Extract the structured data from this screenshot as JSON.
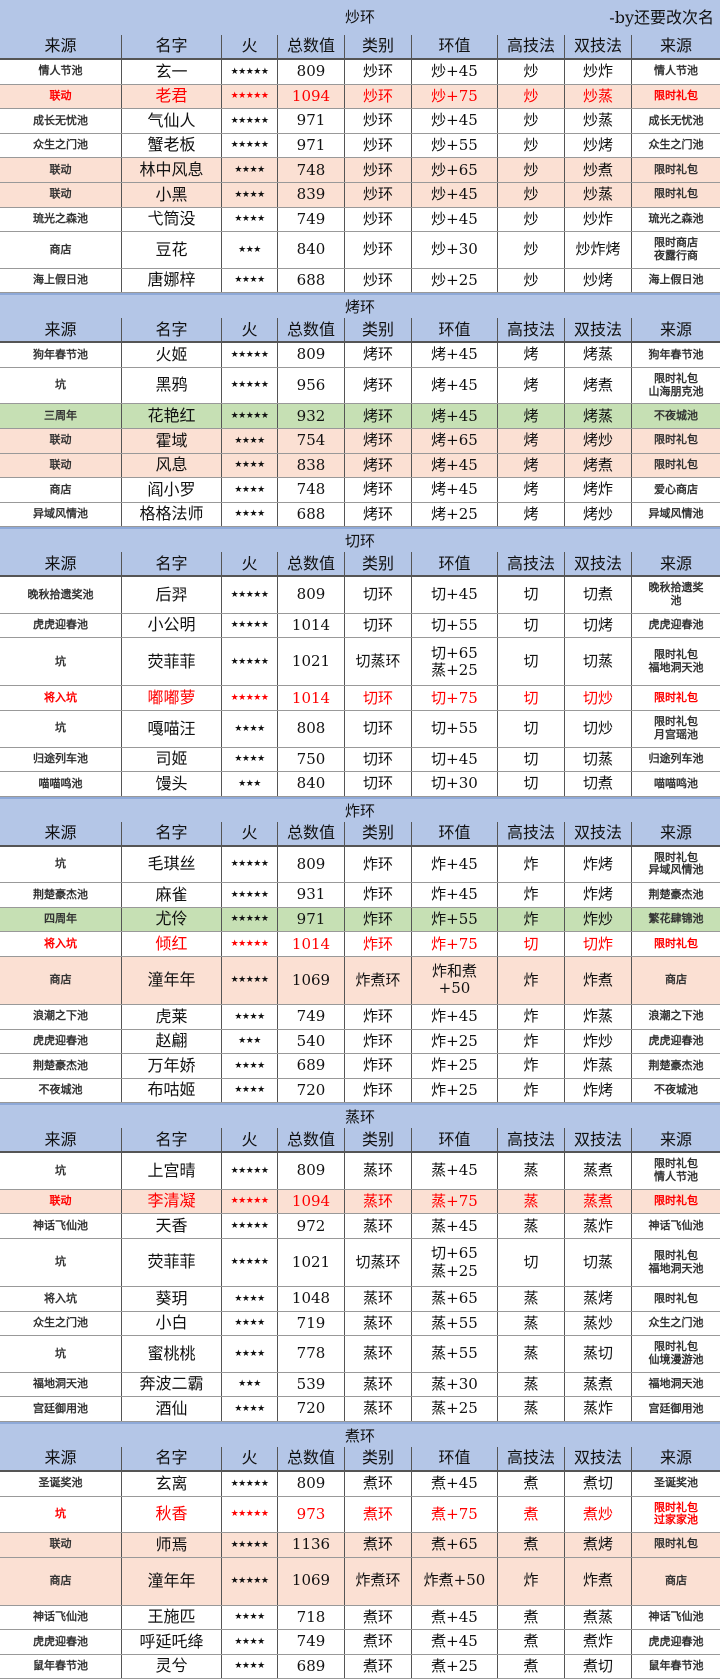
{
  "credit": "-by还要改次名",
  "colors": {
    "header": "#b4c6e7",
    "pink": "#fbe0d3",
    "green": "#c6e0b4",
    "red_text": "#ff0000"
  },
  "columns": [
    "来源",
    "名字",
    "火",
    "总数值",
    "类别",
    "环值",
    "高技法",
    "双技法",
    "来源"
  ],
  "sections": [
    {
      "title": "炒环",
      "rows": [
        {
          "cells": [
            "情人节池",
            "玄一",
            "★★★★★",
            "809",
            "炒环",
            "炒+45",
            "炒",
            "炒炸",
            "情人节池"
          ]
        },
        {
          "highlight": "pink-red",
          "cells": [
            "联动",
            "老君",
            "★★★★★",
            "1094",
            "炒环",
            "炒+75",
            "炒",
            "炒蒸",
            "限时礼包"
          ]
        },
        {
          "cells": [
            "成长无忧池",
            "气仙人",
            "★★★★★",
            "971",
            "炒环",
            "炒+45",
            "炒",
            "炒蒸",
            "成长无忧池"
          ]
        },
        {
          "cells": [
            "众生之门池",
            "蟹老板",
            "★★★★★",
            "971",
            "炒环",
            "炒+55",
            "炒",
            "炒烤",
            "众生之门池"
          ]
        },
        {
          "highlight": "pink",
          "cells": [
            "联动",
            "林中风息",
            "★★★★",
            "748",
            "炒环",
            "炒+65",
            "炒",
            "炒煮",
            "限时礼包"
          ]
        },
        {
          "highlight": "pink",
          "cells": [
            "联动",
            "小黑",
            "★★★★",
            "839",
            "炒环",
            "炒+45",
            "炒",
            "炒蒸",
            "限时礼包"
          ]
        },
        {
          "cells": [
            "琉光之森池",
            "弋筒没",
            "★★★★",
            "749",
            "炒环",
            "炒+45",
            "炒",
            "炒炸",
            "琉光之森池"
          ]
        },
        {
          "cells": [
            "商店",
            "豆花",
            "★★★",
            "840",
            "炒环",
            "炒+30",
            "炒",
            "炒炸烤",
            "限时商店\n夜露行商"
          ]
        },
        {
          "cells": [
            "海上假日池",
            "唐娜梓",
            "★★★★",
            "688",
            "炒环",
            "炒+25",
            "炒",
            "炒烤",
            "海上假日池"
          ]
        }
      ]
    },
    {
      "title": "烤环",
      "rows": [
        {
          "cells": [
            "狗年春节池",
            "火姬",
            "★★★★★",
            "809",
            "烤环",
            "烤+45",
            "烤",
            "烤蒸",
            "狗年春节池"
          ]
        },
        {
          "cells": [
            "坑",
            "黑鸦",
            "★★★★★",
            "956",
            "烤环",
            "烤+45",
            "烤",
            "烤煮",
            "限时礼包\n山海朋克池"
          ]
        },
        {
          "highlight": "green",
          "cells": [
            "三周年",
            "花艳红",
            "★★★★★",
            "932",
            "烤环",
            "烤+45",
            "烤",
            "烤蒸",
            "不夜城池"
          ]
        },
        {
          "highlight": "pink",
          "cells": [
            "联动",
            "霍域",
            "★★★★",
            "754",
            "烤环",
            "烤+65",
            "烤",
            "烤炒",
            "限时礼包"
          ]
        },
        {
          "highlight": "pink",
          "cells": [
            "联动",
            "风息",
            "★★★★",
            "838",
            "烤环",
            "烤+45",
            "烤",
            "烤煮",
            "限时礼包"
          ]
        },
        {
          "cells": [
            "商店",
            "阎小罗",
            "★★★★",
            "748",
            "烤环",
            "烤+45",
            "烤",
            "烤炸",
            "爱心商店"
          ]
        },
        {
          "cells": [
            "异域风情池",
            "格格法师",
            "★★★★",
            "688",
            "烤环",
            "烤+25",
            "烤",
            "烤炒",
            "异域风情池"
          ]
        }
      ]
    },
    {
      "title": "切环",
      "rows": [
        {
          "cells": [
            "晚秋拾遗奖池",
            "后羿",
            "★★★★★",
            "809",
            "切环",
            "切+45",
            "切",
            "切煮",
            "晚秋拾遗奖\n池"
          ]
        },
        {
          "cells": [
            "虎虎迎春池",
            "小公明",
            "★★★★★",
            "1014",
            "切环",
            "切+55",
            "切",
            "切烤",
            "虎虎迎春池"
          ]
        },
        {
          "tall": true,
          "cells": [
            "坑",
            "荧菲菲",
            "★★★★★",
            "1021",
            "切蒸环",
            "切+65\n蒸+25",
            "切",
            "切蒸",
            "限时礼包\n福地洞天池"
          ]
        },
        {
          "highlight": "red",
          "cells": [
            "将入坑",
            "嘟嘟萝",
            "★★★★★",
            "1014",
            "切环",
            "切+75",
            "切",
            "切炒",
            "限时礼包"
          ]
        },
        {
          "cells": [
            "坑",
            "嘎喵汪",
            "★★★★",
            "808",
            "切环",
            "切+55",
            "切",
            "切炒",
            "限时礼包\n月宫瑶池"
          ]
        },
        {
          "cells": [
            "归途列车池",
            "司姬",
            "★★★★",
            "750",
            "切环",
            "切+45",
            "切",
            "切蒸",
            "归途列车池"
          ]
        },
        {
          "cells": [
            "喵喵鸣池",
            "馒头",
            "★★★",
            "840",
            "切环",
            "切+30",
            "切",
            "切煮",
            "喵喵鸣池"
          ]
        }
      ]
    },
    {
      "title": "炸环",
      "rows": [
        {
          "cells": [
            "坑",
            "毛琪丝",
            "★★★★★",
            "809",
            "炸环",
            "炸+45",
            "炸",
            "炸烤",
            "限时礼包\n异域风情池"
          ]
        },
        {
          "cells": [
            "荆楚豪杰池",
            "麻雀",
            "★★★★★",
            "931",
            "炸环",
            "炸+45",
            "炸",
            "炸烤",
            "荆楚豪杰池"
          ]
        },
        {
          "highlight": "green",
          "cells": [
            "四周年",
            "尤伶",
            "★★★★★",
            "971",
            "炸环",
            "炸+55",
            "炸",
            "炸炒",
            "繁花肆锦池"
          ]
        },
        {
          "highlight": "red",
          "cells": [
            "将入坑",
            "倾红",
            "★★★★★",
            "1014",
            "炸环",
            "炸+75",
            "切",
            "切炸",
            "限时礼包"
          ]
        },
        {
          "highlight": "pink",
          "tall": true,
          "cells": [
            "商店",
            "潼年年",
            "★★★★★",
            "1069",
            "炸煮环",
            "炸和煮\n+50",
            "炸",
            "炸煮",
            "商店"
          ]
        },
        {
          "cells": [
            "浪潮之下池",
            "虎莱",
            "★★★★",
            "749",
            "炸环",
            "炸+45",
            "炸",
            "炸蒸",
            "浪潮之下池"
          ]
        },
        {
          "cells": [
            "虎虎迎春池",
            "赵翩",
            "★★★",
            "540",
            "炸环",
            "炸+25",
            "炸",
            "炸炒",
            "虎虎迎春池"
          ]
        },
        {
          "cells": [
            "荆楚豪杰池",
            "万年娇",
            "★★★★",
            "689",
            "炸环",
            "炸+25",
            "炸",
            "炸蒸",
            "荆楚豪杰池"
          ]
        },
        {
          "cells": [
            "不夜城池",
            "布咕姬",
            "★★★★",
            "720",
            "炸环",
            "炸+25",
            "炸",
            "炸烤",
            "不夜城池"
          ]
        }
      ]
    },
    {
      "title": "蒸环",
      "rows": [
        {
          "cells": [
            "坑",
            "上宫晴",
            "★★★★★",
            "809",
            "蒸环",
            "蒸+45",
            "蒸",
            "蒸煮",
            "限时礼包\n情人节池"
          ]
        },
        {
          "highlight": "pink-red",
          "cells": [
            "联动",
            "李清凝",
            "★★★★★",
            "1094",
            "蒸环",
            "蒸+75",
            "蒸",
            "蒸煮",
            "限时礼包"
          ]
        },
        {
          "cells": [
            "神话飞仙池",
            "天香",
            "★★★★★",
            "972",
            "蒸环",
            "蒸+45",
            "蒸",
            "蒸炸",
            "神话飞仙池"
          ]
        },
        {
          "tall": true,
          "cells": [
            "坑",
            "荧菲菲",
            "★★★★★",
            "1021",
            "切蒸环",
            "切+65\n蒸+25",
            "切",
            "切蒸",
            "限时礼包\n福地洞天池"
          ]
        },
        {
          "cells": [
            "将入坑",
            "葵玥",
            "★★★★",
            "1048",
            "蒸环",
            "蒸+65",
            "蒸",
            "蒸烤",
            "限时礼包"
          ]
        },
        {
          "cells": [
            "众生之门池",
            "小白",
            "★★★★",
            "719",
            "蒸环",
            "蒸+55",
            "蒸",
            "蒸炒",
            "众生之门池"
          ]
        },
        {
          "cells": [
            "坑",
            "蜜桃桃",
            "★★★★",
            "778",
            "蒸环",
            "蒸+55",
            "蒸",
            "蒸切",
            "限时礼包\n仙境漫游池"
          ]
        },
        {
          "cells": [
            "福地洞天池",
            "奔波二霸",
            "★★★",
            "539",
            "蒸环",
            "蒸+30",
            "蒸",
            "蒸煮",
            "福地洞天池"
          ]
        },
        {
          "cells": [
            "宫廷御用池",
            "酒仙",
            "★★★★",
            "720",
            "蒸环",
            "蒸+25",
            "蒸",
            "蒸炸",
            "宫廷御用池"
          ]
        }
      ]
    },
    {
      "title": "煮环",
      "rows": [
        {
          "cells": [
            "圣诞奖池",
            "玄离",
            "★★★★★",
            "809",
            "煮环",
            "煮+45",
            "煮",
            "煮切",
            "圣诞奖池"
          ]
        },
        {
          "highlight": "red",
          "cells": [
            "坑",
            "秋香",
            "★★★★★",
            "973",
            "煮环",
            "煮+75",
            "煮",
            "煮炒",
            "限时礼包\n过家家池"
          ]
        },
        {
          "highlight": "pink",
          "cells": [
            "联动",
            "师焉",
            "★★★★★",
            "1136",
            "煮环",
            "煮+65",
            "煮",
            "煮烤",
            "限时礼包"
          ]
        },
        {
          "highlight": "pink",
          "tall": true,
          "cells": [
            "商店",
            "潼年年",
            "★★★★★",
            "1069",
            "炸煮环",
            "炸煮+50",
            "炸",
            "炸煮",
            "商店"
          ]
        },
        {
          "cells": [
            "神话飞仙池",
            "王施匹",
            "★★★★",
            "718",
            "煮环",
            "煮+45",
            "煮",
            "煮蒸",
            "神话飞仙池"
          ]
        },
        {
          "cells": [
            "虎虎迎春池",
            "呼延吒绛",
            "★★★★",
            "749",
            "煮环",
            "煮+45",
            "煮",
            "煮炸",
            "虎虎迎春池"
          ]
        },
        {
          "cells": [
            "鼠年春节池",
            "灵兮",
            "★★★★",
            "689",
            "煮环",
            "煮+25",
            "煮",
            "煮切",
            "鼠年春节池"
          ]
        }
      ]
    }
  ]
}
